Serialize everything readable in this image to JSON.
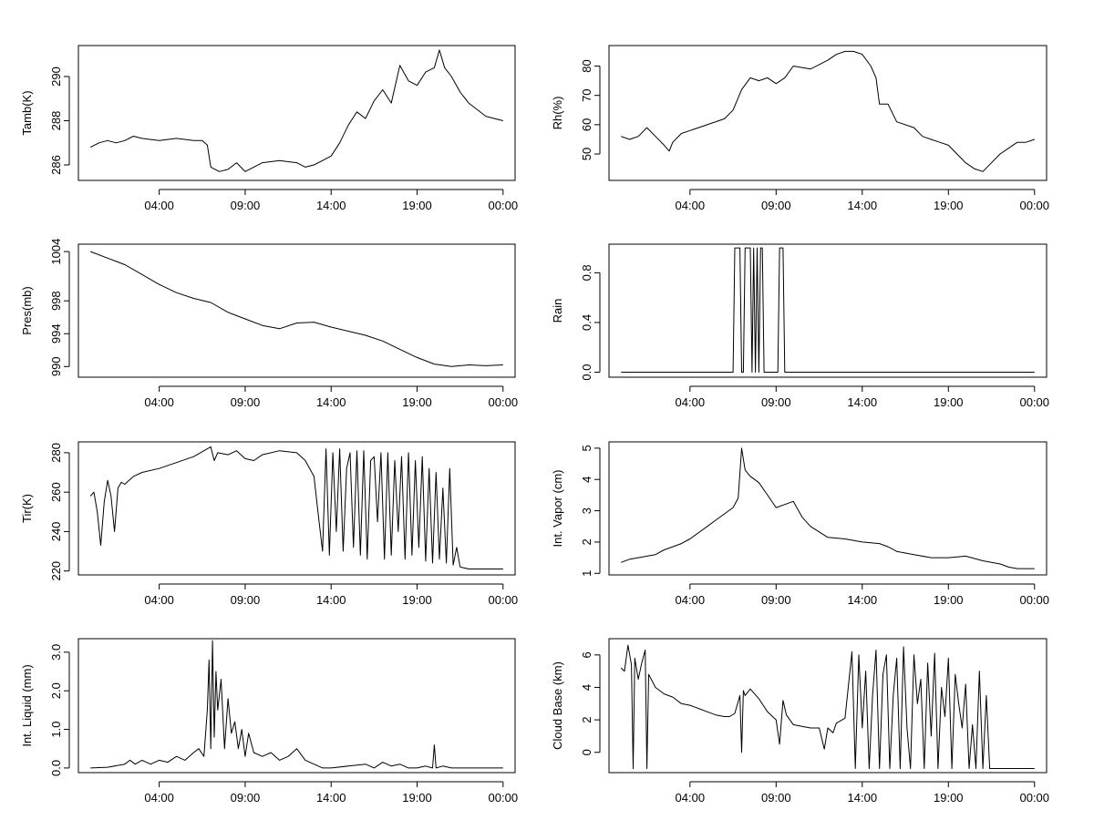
{
  "chart_data": [
    {
      "type": "line",
      "ylabel": "Tamb(K)",
      "ylim": [
        285.3,
        291.4
      ],
      "yticks": [
        286,
        288,
        290
      ],
      "ytick_labels": [
        "286",
        "288",
        "290"
      ],
      "xlim": [
        -0.7,
        24.7
      ],
      "xticks": [
        4,
        9,
        14,
        19,
        24
      ],
      "xtick_labels": [
        "04:00",
        "09:00",
        "14:00",
        "19:00",
        "00:00"
      ],
      "series": [
        {
          "name": "Tamb",
          "x": [
            0,
            0.5,
            1.0,
            1.5,
            2.0,
            2.5,
            3.0,
            4.0,
            5.0,
            6.0,
            6.5,
            6.8,
            7.0,
            7.5,
            8.0,
            8.5,
            9.0,
            9.5,
            10.0,
            11.0,
            12.0,
            12.5,
            13.0,
            13.5,
            14.0,
            14.5,
            15.0,
            15.5,
            16.0,
            16.5,
            17.0,
            17.5,
            18.0,
            18.5,
            19.0,
            19.5,
            20.0,
            20.3,
            20.6,
            21.0,
            21.5,
            22.0,
            22.5,
            23.0,
            23.5,
            24.0
          ],
          "values": [
            286.8,
            287.0,
            287.1,
            287.0,
            287.1,
            287.3,
            287.2,
            287.1,
            287.2,
            287.1,
            287.1,
            286.9,
            285.9,
            285.7,
            285.8,
            286.1,
            285.7,
            285.9,
            286.1,
            286.2,
            286.1,
            285.9,
            286.0,
            286.2,
            286.4,
            287.0,
            287.8,
            288.4,
            288.1,
            288.9,
            289.4,
            288.8,
            290.5,
            289.8,
            289.6,
            290.2,
            290.4,
            291.2,
            290.4,
            290.0,
            289.3,
            288.8,
            288.5,
            288.2,
            288.1,
            288.0
          ]
        }
      ]
    },
    {
      "type": "line",
      "ylabel": "Rh(%)",
      "ylim": [
        41.0,
        87.0
      ],
      "yticks": [
        50,
        60,
        70,
        80
      ],
      "ytick_labels": [
        "50",
        "60",
        "70",
        "80"
      ],
      "xlim": [
        -0.7,
        24.7
      ],
      "xticks": [
        4,
        9,
        14,
        19,
        24
      ],
      "xtick_labels": [
        "04:00",
        "09:00",
        "14:00",
        "19:00",
        "00:00"
      ],
      "series": [
        {
          "name": "Rh",
          "x": [
            0,
            0.5,
            1.0,
            1.5,
            2.0,
            2.5,
            2.8,
            3.0,
            3.5,
            4.0,
            5.0,
            6.0,
            6.5,
            7.0,
            7.5,
            8.0,
            8.5,
            9.0,
            9.5,
            10.0,
            11.0,
            12.0,
            12.5,
            13.0,
            13.5,
            14.0,
            14.5,
            14.8,
            15.0,
            15.5,
            16.0,
            17.0,
            17.5,
            18.0,
            18.5,
            19.0,
            19.5,
            20.0,
            20.5,
            21.0,
            21.5,
            22.0,
            22.5,
            23.0,
            23.5,
            24.0
          ],
          "values": [
            56,
            55,
            56,
            59,
            56,
            53,
            51,
            54,
            57,
            58,
            60,
            62,
            65,
            72,
            76,
            75,
            76,
            74,
            76,
            80,
            79,
            82,
            84,
            85,
            85,
            84,
            80,
            76,
            67,
            67,
            61,
            59,
            56,
            55,
            54,
            53,
            50,
            47,
            45,
            44,
            47,
            50,
            52,
            54,
            54,
            55
          ]
        }
      ]
    },
    {
      "type": "line",
      "ylabel": "Pres(mb)",
      "ylim": [
        988.7,
        1004.9
      ],
      "yticks": [
        990,
        994,
        998,
        1004
      ],
      "ytick_labels": [
        "990",
        "994",
        "998",
        "1004"
      ],
      "xlim": [
        -0.7,
        24.7
      ],
      "xticks": [
        4,
        9,
        14,
        19,
        24
      ],
      "xtick_labels": [
        "04:00",
        "09:00",
        "14:00",
        "19:00",
        "00:00"
      ],
      "series": [
        {
          "name": "Pres",
          "x": [
            0,
            1.0,
            2.0,
            3.0,
            4.0,
            5.0,
            6.0,
            7.0,
            8.0,
            9.0,
            10.0,
            11.0,
            12.0,
            13.0,
            14.0,
            15.0,
            16.0,
            17.0,
            18.0,
            19.0,
            20.0,
            21.0,
            22.0,
            23.0,
            24.0
          ],
          "values": [
            1004.0,
            1003.2,
            1002.4,
            1001.2,
            1000.0,
            999.0,
            998.3,
            997.8,
            996.6,
            995.8,
            995.0,
            994.6,
            995.3,
            995.4,
            994.8,
            994.3,
            993.8,
            993.1,
            992.1,
            991.1,
            990.3,
            990.0,
            990.2,
            990.1,
            990.2
          ]
        }
      ]
    },
    {
      "type": "line",
      "ylabel": "Rain",
      "ylim": [
        -0.04,
        1.03
      ],
      "yticks": [
        0.0,
        0.4,
        0.8
      ],
      "ytick_labels": [
        "0.0",
        "0.4",
        "0.8"
      ],
      "xlim": [
        -0.7,
        24.7
      ],
      "xticks": [
        4,
        9,
        14,
        19,
        24
      ],
      "xtick_labels": [
        "04:00",
        "09:00",
        "14:00",
        "19:00",
        "00:00"
      ],
      "series": [
        {
          "name": "Rain",
          "x": [
            0,
            6.5,
            6.6,
            6.9,
            7.0,
            7.1,
            7.2,
            7.5,
            7.6,
            7.7,
            7.8,
            7.9,
            8.0,
            8.1,
            8.2,
            8.3,
            9.1,
            9.2,
            9.4,
            9.5,
            24.0
          ],
          "values": [
            0,
            0,
            1,
            1,
            0,
            0,
            1,
            1,
            0,
            1,
            0,
            1,
            0,
            1,
            1,
            0,
            0,
            1,
            1,
            0,
            0
          ]
        }
      ]
    },
    {
      "type": "line",
      "ylabel": "Tir(K)",
      "ylim": [
        218.0,
        285.5
      ],
      "yticks": [
        220,
        240,
        260,
        280
      ],
      "ytick_labels": [
        "220",
        "240",
        "260",
        "280"
      ],
      "xlim": [
        -0.7,
        24.7
      ],
      "xticks": [
        4,
        9,
        14,
        19,
        24
      ],
      "xtick_labels": [
        "04:00",
        "09:00",
        "14:00",
        "19:00",
        "00:00"
      ],
      "series": [
        {
          "name": "Tir",
          "x": [
            0,
            0.2,
            0.4,
            0.6,
            0.8,
            1.0,
            1.2,
            1.4,
            1.6,
            1.8,
            2.0,
            2.5,
            3.0,
            4.0,
            5.0,
            6.0,
            7.0,
            7.2,
            7.4,
            8.0,
            8.5,
            9.0,
            9.5,
            10.0,
            11.0,
            12.0,
            12.5,
            13.0,
            13.3,
            13.5,
            13.7,
            13.9,
            14.1,
            14.3,
            14.5,
            14.7,
            14.9,
            15.1,
            15.3,
            15.5,
            15.7,
            15.9,
            16.1,
            16.3,
            16.5,
            16.7,
            16.9,
            17.1,
            17.3,
            17.5,
            17.7,
            17.9,
            18.1,
            18.3,
            18.5,
            18.7,
            18.9,
            19.1,
            19.3,
            19.5,
            19.7,
            19.9,
            20.1,
            20.3,
            20.5,
            20.7,
            20.9,
            21.1,
            21.3,
            21.5,
            22.0,
            23.0,
            24.0
          ],
          "values": [
            258,
            260,
            250,
            233,
            255,
            266,
            258,
            240,
            262,
            265,
            264,
            268,
            270,
            272,
            275,
            278,
            283,
            276,
            280,
            279,
            281,
            277,
            276,
            279,
            281,
            280,
            276,
            268,
            245,
            230,
            282,
            228,
            280,
            240,
            282,
            230,
            272,
            280,
            232,
            281,
            228,
            281,
            226,
            276,
            278,
            245,
            280,
            226,
            280,
            228,
            276,
            240,
            278,
            226,
            280,
            228,
            276,
            232,
            278,
            225,
            272,
            224,
            270,
            226,
            262,
            224,
            272,
            223,
            232,
            222,
            221,
            221,
            221
          ]
        }
      ]
    },
    {
      "type": "line",
      "ylabel": "Int. Vapor (cm)",
      "ylim": [
        0.95,
        5.2
      ],
      "yticks": [
        1,
        2,
        3,
        4,
        5
      ],
      "ytick_labels": [
        "1",
        "2",
        "3",
        "4",
        "5"
      ],
      "xlim": [
        -0.7,
        24.7
      ],
      "xticks": [
        4,
        9,
        14,
        19,
        24
      ],
      "xtick_labels": [
        "04:00",
        "09:00",
        "14:00",
        "19:00",
        "00:00"
      ],
      "series": [
        {
          "name": "Int. Vapor",
          "x": [
            0,
            0.5,
            1.0,
            1.5,
            2.0,
            2.5,
            3.0,
            3.5,
            4.0,
            4.5,
            5.0,
            5.5,
            6.0,
            6.5,
            6.8,
            7.0,
            7.2,
            7.5,
            8.0,
            8.5,
            9.0,
            9.5,
            10.0,
            10.5,
            11.0,
            12.0,
            13.0,
            14.0,
            15.0,
            15.5,
            16.0,
            17.0,
            18.0,
            19.0,
            20.0,
            21.0,
            22.0,
            22.5,
            23.0,
            23.5,
            24.0
          ],
          "values": [
            1.35,
            1.45,
            1.5,
            1.55,
            1.6,
            1.75,
            1.85,
            1.95,
            2.1,
            2.3,
            2.5,
            2.7,
            2.9,
            3.1,
            3.4,
            5.0,
            4.3,
            4.1,
            3.9,
            3.5,
            3.1,
            3.2,
            3.3,
            2.8,
            2.5,
            2.15,
            2.1,
            2.0,
            1.95,
            1.85,
            1.7,
            1.6,
            1.5,
            1.5,
            1.55,
            1.4,
            1.3,
            1.2,
            1.15,
            1.15,
            1.15
          ]
        }
      ]
    },
    {
      "type": "line",
      "ylabel": "Int. Liquid (mm)",
      "ylim": [
        -0.12,
        3.35
      ],
      "yticks": [
        0.0,
        1.0,
        2.0,
        3.0
      ],
      "ytick_labels": [
        "0.0",
        "1.0",
        "2.0",
        "3.0"
      ],
      "xlim": [
        -0.7,
        24.7
      ],
      "xticks": [
        4,
        9,
        14,
        19,
        24
      ],
      "xtick_labels": [
        "04:00",
        "09:00",
        "14:00",
        "19:00",
        "00:00"
      ],
      "series": [
        {
          "name": "Int. Liquid",
          "x": [
            0,
            1.0,
            2.0,
            2.3,
            2.6,
            3.0,
            3.5,
            4.0,
            4.5,
            5.0,
            5.5,
            6.0,
            6.3,
            6.6,
            6.8,
            6.9,
            7.0,
            7.1,
            7.2,
            7.3,
            7.4,
            7.6,
            7.8,
            8.0,
            8.2,
            8.4,
            8.6,
            8.8,
            9.0,
            9.2,
            9.5,
            10.0,
            10.5,
            11.0,
            11.5,
            12.0,
            12.5,
            13.0,
            13.5,
            14.0,
            15.0,
            16.0,
            16.5,
            17.0,
            17.5,
            18.0,
            18.5,
            19.0,
            19.5,
            19.9,
            20.0,
            20.1,
            20.5,
            21.0,
            22.0,
            23.0,
            24.0
          ],
          "values": [
            0.0,
            0.02,
            0.1,
            0.2,
            0.1,
            0.2,
            0.1,
            0.2,
            0.15,
            0.3,
            0.2,
            0.4,
            0.5,
            0.3,
            1.5,
            2.8,
            0.5,
            3.3,
            0.8,
            2.5,
            1.5,
            2.3,
            0.5,
            1.8,
            0.9,
            1.2,
            0.5,
            1.0,
            0.3,
            0.9,
            0.4,
            0.3,
            0.4,
            0.2,
            0.3,
            0.5,
            0.2,
            0.1,
            0.0,
            0.0,
            0.05,
            0.1,
            0.0,
            0.15,
            0.05,
            0.1,
            0.0,
            0.0,
            0.05,
            0.0,
            0.6,
            0.0,
            0.05,
            0.0,
            0.0,
            0.0,
            0.0
          ]
        }
      ]
    },
    {
      "type": "line",
      "ylabel": "Cloud Base (km)",
      "ylim": [
        -1.25,
        7.0
      ],
      "yticks": [
        0,
        2,
        4,
        6
      ],
      "ytick_labels": [
        "0",
        "2",
        "4",
        "6"
      ],
      "xlim": [
        -0.7,
        24.7
      ],
      "xticks": [
        4,
        9,
        14,
        19,
        24
      ],
      "xtick_labels": [
        "04:00",
        "09:00",
        "14:00",
        "19:00",
        "00:00"
      ],
      "series": [
        {
          "name": "Cloud Base",
          "x": [
            0,
            0.2,
            0.4,
            0.6,
            0.7,
            0.8,
            1.0,
            1.2,
            1.4,
            1.5,
            1.6,
            2.0,
            2.5,
            3.0,
            3.5,
            4.0,
            4.5,
            5.0,
            5.5,
            6.0,
            6.3,
            6.6,
            6.9,
            7.0,
            7.1,
            7.2,
            7.5,
            8.0,
            8.5,
            9.0,
            9.2,
            9.4,
            9.6,
            10.0,
            10.5,
            11.0,
            11.5,
            11.8,
            12.0,
            12.3,
            12.5,
            13.0,
            13.4,
            13.6,
            13.8,
            14.0,
            14.2,
            14.4,
            14.6,
            14.8,
            15.0,
            15.2,
            15.4,
            15.6,
            15.8,
            16.0,
            16.2,
            16.4,
            16.6,
            16.8,
            17.0,
            17.2,
            17.4,
            17.6,
            17.8,
            18.0,
            18.2,
            18.4,
            18.6,
            18.8,
            19.0,
            19.2,
            19.4,
            19.6,
            19.8,
            20.0,
            20.2,
            20.4,
            20.6,
            20.8,
            21.0,
            21.2,
            21.4,
            21.6,
            21.8,
            22.0,
            23.0,
            24.0
          ],
          "values": [
            5.2,
            5.0,
            6.6,
            5.4,
            -1.0,
            5.8,
            4.5,
            5.5,
            6.3,
            -1.0,
            4.8,
            4.0,
            3.6,
            3.4,
            3.0,
            2.9,
            2.7,
            2.5,
            2.3,
            2.2,
            2.2,
            2.4,
            3.5,
            0.0,
            3.8,
            3.5,
            3.9,
            3.3,
            2.5,
            2.0,
            0.5,
            3.2,
            2.3,
            1.7,
            1.6,
            1.5,
            1.5,
            0.2,
            1.5,
            1.2,
            1.8,
            2.1,
            6.2,
            -1.0,
            6.0,
            1.5,
            5.0,
            -1.0,
            3.5,
            6.3,
            -1.0,
            4.8,
            6.0,
            -1.0,
            3.5,
            5.8,
            -1.0,
            6.5,
            1.5,
            -1.0,
            6.0,
            3.0,
            4.5,
            -1.0,
            5.5,
            1.0,
            6.1,
            -1.0,
            4.0,
            2.2,
            5.8,
            -1.0,
            4.8,
            3.0,
            1.5,
            4.2,
            -1.0,
            1.7,
            -1.0,
            5.0,
            -1.0,
            3.5,
            -1.0,
            -1.0,
            -1.0,
            -1.0,
            -1.0,
            -1.0
          ]
        }
      ]
    }
  ]
}
